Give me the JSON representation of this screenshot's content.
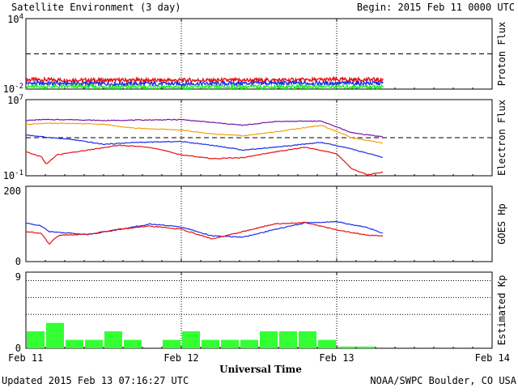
{
  "header": {
    "title": "Satellite Environment (3 day)",
    "begin": "Begin:  2015 Feb 11 0000 UTC"
  },
  "footer": {
    "updated": "Updated 2015 Feb 13 07:16:27 UTC",
    "source": "NOAA/SWPC Boulder, CO USA"
  },
  "x_axis": {
    "title": "Universal Time",
    "ticks": [
      "Feb 11",
      "Feb 12",
      "Feb 13",
      "Feb 14"
    ],
    "range_days": [
      0,
      3
    ],
    "data_end_day": 2.3
  },
  "colors": {
    "red": "#e81010",
    "blue": "#1a2ee8",
    "green": "#22ee22",
    "purple": "#7a14a8",
    "orange": "#f0a010",
    "kp_bar": "#33ff33"
  },
  "chart_data": [
    {
      "type": "line",
      "panel": "proton",
      "ylabel": "Proton Flux",
      "scale": "log",
      "ylim_exp": [
        -2,
        4
      ],
      "y_ticks": [
        {
          "base": "10",
          "exp": "4"
        },
        {
          "base": "10",
          "exp": "-2"
        }
      ],
      "threshold_exp": 1,
      "series": [
        {
          "color_key": "red",
          "x": [
            0,
            0.5,
            1,
            1.5,
            2,
            2.3
          ],
          "log10_y": [
            -1.2,
            -1.25,
            -1.25,
            -1.25,
            -1.2,
            -1.2
          ]
        },
        {
          "color_key": "blue",
          "x": [
            0,
            0.5,
            1,
            1.5,
            2,
            2.3
          ],
          "log10_y": [
            -1.5,
            -1.55,
            -1.55,
            -1.5,
            -1.5,
            -1.5
          ]
        },
        {
          "color_key": "green",
          "x": [
            0,
            0.5,
            1,
            1.5,
            2,
            2.3
          ],
          "log10_y": [
            -1.8,
            -1.8,
            -1.85,
            -1.8,
            -1.8,
            -1.8
          ]
        }
      ]
    },
    {
      "type": "line",
      "panel": "electron",
      "ylabel": "Electron Flux",
      "scale": "log",
      "ylim_exp": [
        -1,
        7
      ],
      "y_ticks": [
        {
          "base": "10",
          "exp": "7"
        },
        {
          "base": "10",
          "exp": "-1"
        }
      ],
      "threshold_exp": 3,
      "series": [
        {
          "color_key": "purple",
          "x": [
            0,
            0.1,
            0.3,
            0.5,
            0.7,
            1,
            1.2,
            1.4,
            1.6,
            1.9,
            2.1,
            2.3
          ],
          "log10_y": [
            4.8,
            4.9,
            4.9,
            4.8,
            4.85,
            4.9,
            4.6,
            4.3,
            4.7,
            4.75,
            3.5,
            3.1
          ]
        },
        {
          "color_key": "orange",
          "x": [
            0,
            0.1,
            0.3,
            0.5,
            0.7,
            1,
            1.2,
            1.4,
            1.6,
            1.9,
            2.1,
            2.3
          ],
          "log10_y": [
            4.4,
            4.5,
            4.5,
            4.4,
            4.0,
            3.8,
            3.4,
            3.2,
            3.6,
            4.3,
            3.0,
            2.4
          ]
        },
        {
          "color_key": "blue",
          "x": [
            0,
            0.1,
            0.3,
            0.5,
            0.7,
            1,
            1.2,
            1.4,
            1.6,
            1.9,
            2.1,
            2.3
          ],
          "log10_y": [
            3.3,
            3.1,
            2.8,
            2.3,
            2.5,
            2.6,
            2.2,
            1.7,
            2.0,
            2.5,
            1.8,
            0.9
          ]
        },
        {
          "color_key": "red",
          "x": [
            0,
            0.1,
            0.13,
            0.2,
            0.4,
            0.6,
            0.8,
            1,
            1.2,
            1.4,
            1.6,
            1.8,
            2.0,
            2.1,
            2.2,
            2.3
          ],
          "log10_y": [
            1.5,
            1.0,
            0.2,
            1.2,
            1.7,
            2.2,
            2.0,
            1.2,
            0.8,
            0.9,
            1.5,
            2.0,
            1.3,
            -0.3,
            -0.9,
            -0.6
          ]
        }
      ]
    },
    {
      "type": "line",
      "panel": "goes_hp",
      "ylabel": "GOES Hp",
      "scale": "linear",
      "ylim": [
        0,
        200
      ],
      "y_ticks": [
        "200",
        "0"
      ],
      "series": [
        {
          "color_key": "blue",
          "x": [
            0,
            0.1,
            0.15,
            0.2,
            0.4,
            0.6,
            0.8,
            1.0,
            1.2,
            1.4,
            1.6,
            1.8,
            2.0,
            2.2,
            2.3
          ],
          "y": [
            102,
            95,
            80,
            78,
            72,
            85,
            100,
            92,
            68,
            65,
            85,
            103,
            106,
            90,
            75
          ]
        },
        {
          "color_key": "red",
          "x": [
            0,
            0.1,
            0.15,
            0.18,
            0.22,
            0.4,
            0.6,
            0.8,
            1.0,
            1.2,
            1.4,
            1.6,
            1.8,
            2.0,
            2.2,
            2.3
          ],
          "y": [
            80,
            75,
            45,
            60,
            70,
            73,
            86,
            94,
            86,
            60,
            80,
            100,
            104,
            84,
            70,
            68
          ]
        }
      ]
    },
    {
      "type": "bar",
      "panel": "kp",
      "ylabel": "Estimated Kp",
      "ylim": [
        0,
        9
      ],
      "y_ticks": [
        "9",
        "0"
      ],
      "dotted_levels": [
        4,
        6,
        8,
        9
      ],
      "bar_width_days": 0.125,
      "values": [
        2,
        3,
        1,
        1,
        2,
        1,
        0,
        1,
        2,
        1,
        1,
        1,
        2,
        2,
        2,
        1,
        0.2,
        0.2
      ]
    }
  ]
}
